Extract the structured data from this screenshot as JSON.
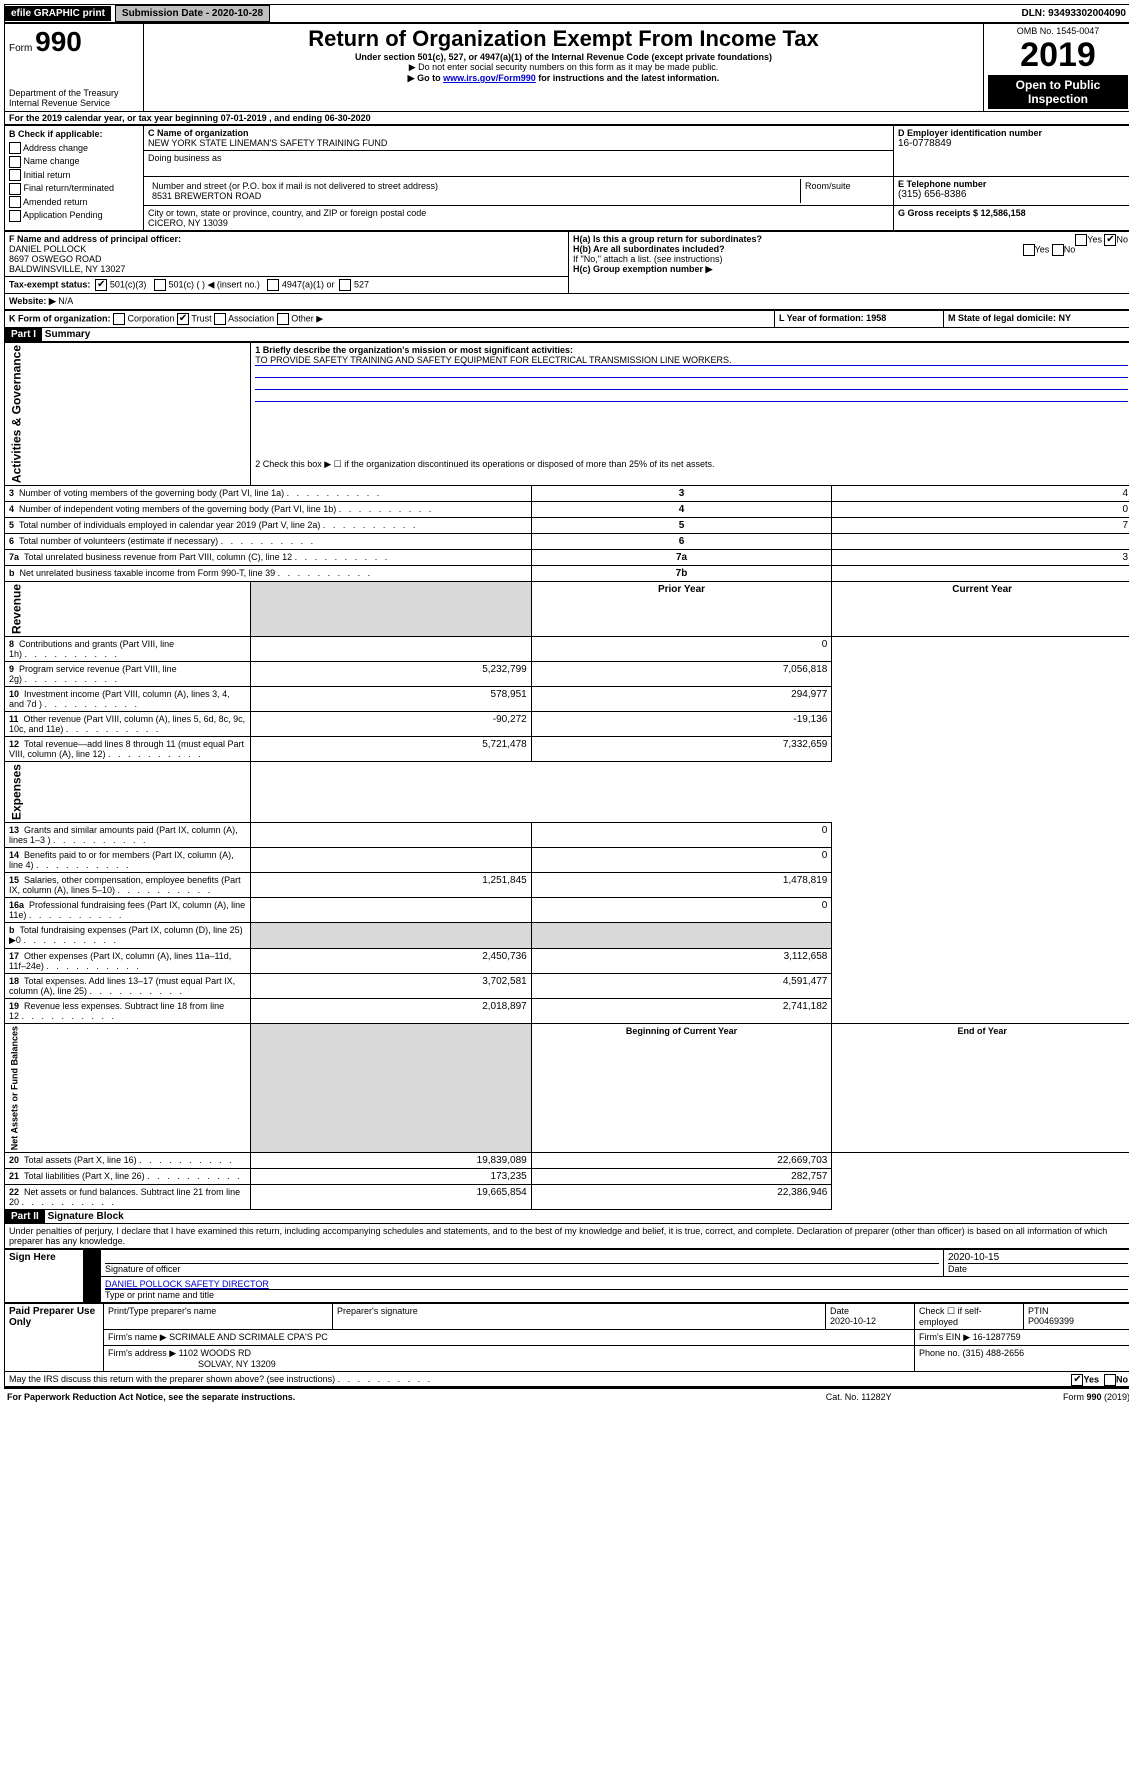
{
  "top": {
    "efile": "efile GRAPHIC print",
    "submission_label": "Submission Date - 2020-10-28",
    "dln_label": "DLN: 93493302004090"
  },
  "header": {
    "form_word": "Form",
    "form_no": "990",
    "title": "Return of Organization Exempt From Income Tax",
    "subtitle": "Under section 501(c), 527, or 4947(a)(1) of the Internal Revenue Code (except private foundations)",
    "note1": "▶ Do not enter social security numbers on this form as it may be made public.",
    "note2a": "▶ Go to ",
    "note2b": "www.irs.gov/Form990",
    "note2c": " for instructions and the latest information.",
    "omb": "OMB No. 1545-0047",
    "year": "2019",
    "open": "Open to Public Inspection",
    "dept": "Department of the Treasury\nInternal Revenue Service"
  },
  "A": {
    "line": "For the 2019 calendar year, or tax year beginning 07-01-2019    , and ending 06-30-2020"
  },
  "B": {
    "label": "B Check if applicable:",
    "opts": [
      "Address change",
      "Name change",
      "Initial return",
      "Final return/terminated",
      "Amended return",
      "Application Pending"
    ]
  },
  "C": {
    "nameLabel": "C Name of organization",
    "name": "NEW YORK STATE LINEMAN'S SAFETY TRAINING FUND",
    "dbaLabel": "Doing business as",
    "addrLabel": "Number and street (or P.O. box if mail is not delivered to street address)",
    "roomLabel": "Room/suite",
    "addr": "8531 BREWERTON ROAD",
    "cityLabel": "City or town, state or province, country, and ZIP or foreign postal code",
    "city": "CICERO, NY  13039"
  },
  "D": {
    "label": "D Employer identification number",
    "val": "16-0778849"
  },
  "E": {
    "label": "E Telephone number",
    "val": "(315) 656-8386"
  },
  "G": {
    "label": "G Gross receipts $ 12,586,158"
  },
  "F": {
    "label": "F  Name and address of principal officer:",
    "name": "DANIEL POLLOCK",
    "addr1": "8697 OSWEGO ROAD",
    "addr2": "BALDWINSVILLE, NY  13027"
  },
  "H": {
    "a": "H(a)  Is this a group return for subordinates?",
    "b": "H(b)  Are all subordinates included?",
    "bNote": "If \"No,\" attach a list. (see instructions)",
    "c": "H(c)  Group exemption number ▶",
    "yes": "Yes",
    "no": "No"
  },
  "I": {
    "label": "Tax-exempt status:",
    "o1": "501(c)(3)",
    "o2": "501(c) (   ) ◀ (insert no.)",
    "o3": "4947(a)(1) or",
    "o4": "527"
  },
  "J": {
    "label": "Website: ▶",
    "val": "N/A"
  },
  "K": {
    "label": "K Form of organization:",
    "opts": [
      "Corporation",
      "Trust",
      "Association",
      "Other ▶"
    ]
  },
  "L": {
    "label": "L Year of formation: 1958"
  },
  "M": {
    "label": "M State of legal domicile: NY"
  },
  "part1": {
    "hdr": "Part I",
    "title": "Summary",
    "q1a": "1  Briefly describe the organization's mission or most significant activities:",
    "q1b": "TO PROVIDE SAFETY TRAINING AND SAFETY EQUIPMENT FOR ELECTRICAL TRANSMISSION LINE WORKERS.",
    "q2": "2   Check this box ▶ ☐  if the organization discontinued its operations or disposed of more than 25% of its net assets.",
    "gov": "Activities & Governance",
    "rev": "Revenue",
    "exp": "Expenses",
    "net": "Net Assets or Fund Balances",
    "priorHdr": "Prior Year",
    "currHdr": "Current Year",
    "begHdr": "Beginning of Current Year",
    "endHdr": "End of Year",
    "rows_top": [
      {
        "n": "3",
        "t": "Number of voting members of the governing body (Part VI, line 1a)",
        "c": "3",
        "v": "4"
      },
      {
        "n": "4",
        "t": "Number of independent voting members of the governing body (Part VI, line 1b)",
        "c": "4",
        "v": "0"
      },
      {
        "n": "5",
        "t": "Total number of individuals employed in calendar year 2019 (Part V, line 2a)",
        "c": "5",
        "v": "7"
      },
      {
        "n": "6",
        "t": "Total number of volunteers (estimate if necessary)",
        "c": "6",
        "v": ""
      },
      {
        "n": "7a",
        "t": "Total unrelated business revenue from Part VIII, column (C), line 12",
        "c": "7a",
        "v": "3"
      },
      {
        "n": "b",
        "t": "Net unrelated business taxable income from Form 990-T, line 39",
        "c": "7b",
        "v": ""
      }
    ],
    "rows_rev": [
      {
        "n": "8",
        "t": "Contributions and grants (Part VIII, line 1h)",
        "p": "",
        "c": "0"
      },
      {
        "n": "9",
        "t": "Program service revenue (Part VIII, line 2g)",
        "p": "5,232,799",
        "c": "7,056,818"
      },
      {
        "n": "10",
        "t": "Investment income (Part VIII, column (A), lines 3, 4, and 7d )",
        "p": "578,951",
        "c": "294,977"
      },
      {
        "n": "11",
        "t": "Other revenue (Part VIII, column (A), lines 5, 6d, 8c, 9c, 10c, and 11e)",
        "p": "-90,272",
        "c": "-19,136"
      },
      {
        "n": "12",
        "t": "Total revenue—add lines 8 through 11 (must equal Part VIII, column (A), line 12)",
        "p": "5,721,478",
        "c": "7,332,659"
      }
    ],
    "rows_exp": [
      {
        "n": "13",
        "t": "Grants and similar amounts paid (Part IX, column (A), lines 1–3 )",
        "p": "",
        "c": "0"
      },
      {
        "n": "14",
        "t": "Benefits paid to or for members (Part IX, column (A), line 4)",
        "p": "",
        "c": "0"
      },
      {
        "n": "15",
        "t": "Salaries, other compensation, employee benefits (Part IX, column (A), lines 5–10)",
        "p": "1,251,845",
        "c": "1,478,819"
      },
      {
        "n": "16a",
        "t": "Professional fundraising fees (Part IX, column (A), line 11e)",
        "p": "",
        "c": "0"
      },
      {
        "n": "b",
        "t": "Total fundraising expenses (Part IX, column (D), line 25) ▶0",
        "p": "shade",
        "c": "shade"
      },
      {
        "n": "17",
        "t": "Other expenses (Part IX, column (A), lines 11a–11d, 11f–24e)",
        "p": "2,450,736",
        "c": "3,112,658"
      },
      {
        "n": "18",
        "t": "Total expenses. Add lines 13–17 (must equal Part IX, column (A), line 25)",
        "p": "3,702,581",
        "c": "4,591,477"
      },
      {
        "n": "19",
        "t": "Revenue less expenses. Subtract line 18 from line 12",
        "p": "2,018,897",
        "c": "2,741,182"
      }
    ],
    "rows_net": [
      {
        "n": "20",
        "t": "Total assets (Part X, line 16)",
        "p": "19,839,089",
        "c": "22,669,703"
      },
      {
        "n": "21",
        "t": "Total liabilities (Part X, line 26)",
        "p": "173,235",
        "c": "282,757"
      },
      {
        "n": "22",
        "t": "Net assets or fund balances. Subtract line 21 from line 20",
        "p": "19,665,854",
        "c": "22,386,946"
      }
    ]
  },
  "part2": {
    "hdr": "Part II",
    "title": "Signature Block",
    "decl": "Under penalties of perjury, I declare that I have examined this return, including accompanying schedules and statements, and to the best of my knowledge and belief, it is true, correct, and complete. Declaration of preparer (other than officer) is based on all information of which preparer has any knowledge.",
    "signHere": "Sign Here",
    "sigOff": "Signature of officer",
    "date": "2020-10-15",
    "dateLbl": "Date",
    "nameTitle": "DANIEL POLLOCK  SAFETY DIRECTOR",
    "typeLbl": "Type or print name and title",
    "paid": "Paid Preparer Use Only",
    "prepName": "Print/Type preparer's name",
    "prepSig": "Preparer's signature",
    "prepDate": "Date",
    "prepDateVal": "2020-10-12",
    "chkSelf": "Check ☐ if self-employed",
    "ptin": "PTIN",
    "ptinVal": "P00469399",
    "firmName": "Firm's name    ▶ SCRIMALE AND SCRIMALE CPA'S PC",
    "firmEin": "Firm's EIN ▶ 16-1287759",
    "firmAddr": "Firm's address ▶ 1102 WOODS RD",
    "firmCity": "SOLVAY, NY  13209",
    "firmPhone": "Phone no. (315) 488-2656",
    "discuss": "May the IRS discuss this return with the preparer shown above? (see instructions)",
    "yes": "Yes",
    "no": "No"
  },
  "footer": {
    "pra": "For Paperwork Reduction Act Notice, see the separate instructions.",
    "cat": "Cat. No. 11282Y",
    "form": "Form 990 (2019)"
  }
}
